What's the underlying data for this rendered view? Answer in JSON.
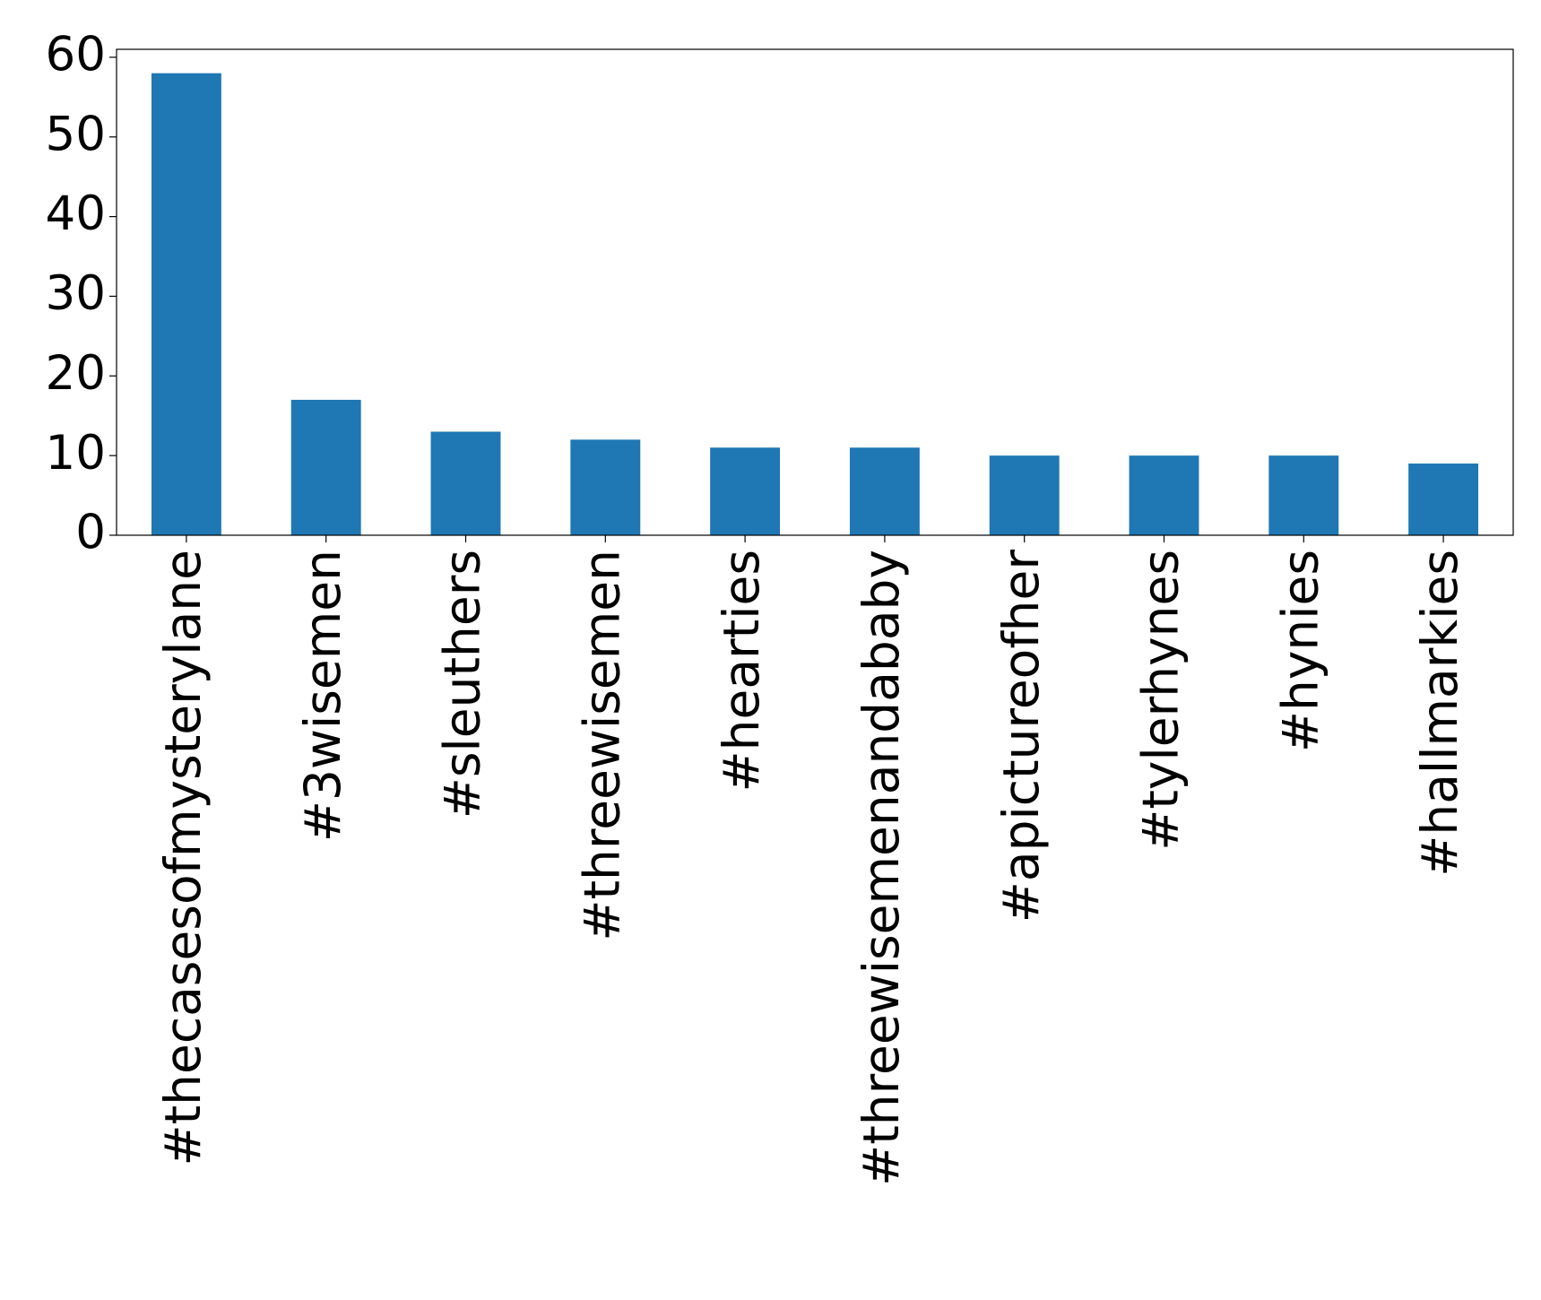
{
  "chart_data": {
    "type": "bar",
    "categories": [
      "#thecasesofmysterylane",
      "#3wisemen",
      "#sleuthers",
      "#threewisemen",
      "#hearties",
      "#threewisemenandababy",
      "#apictureofher",
      "#tylerhynes",
      "#hynies",
      "#hallmarkies"
    ],
    "values": [
      58,
      17,
      13,
      12,
      11,
      11,
      10,
      10,
      10,
      9
    ],
    "color": "#1f77b4",
    "ylim": [
      0,
      61
    ],
    "yticks": [
      0,
      10,
      20,
      30,
      40,
      50,
      60
    ],
    "grid": false
  }
}
